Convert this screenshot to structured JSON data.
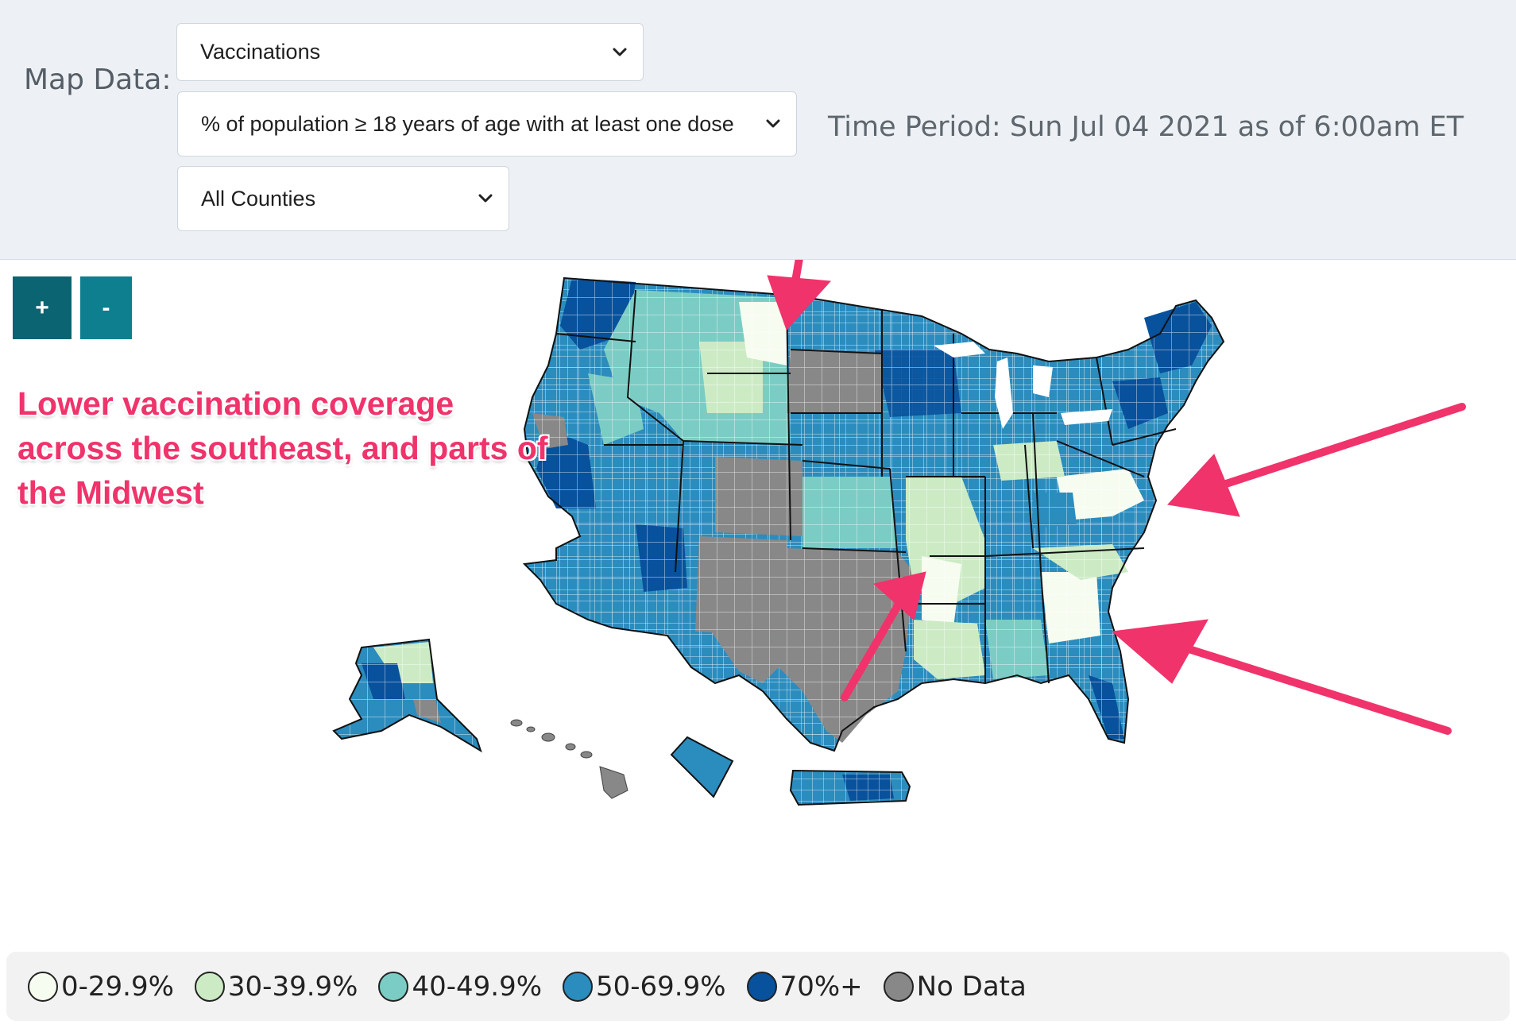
{
  "controls": {
    "map_data_label": "Map Data:",
    "data_select": "Vaccinations",
    "metric_select": "% of population ≥ 18 years of age with at least one dose",
    "geo_select": "All Counties",
    "time_period": "Time Period: Sun Jul 04 2021 as of 6:00am ET"
  },
  "zoom": {
    "in_label": "+",
    "out_label": "-"
  },
  "annotation": "Lower vaccination coverage across the southeast, and parts of the Midwest",
  "icons": [
    "chevron-down-icon"
  ],
  "legend": [
    {
      "label": "0-29.9%",
      "color": "#f7fcf0"
    },
    {
      "label": "30-39.9%",
      "color": "#ccebc5"
    },
    {
      "label": "40-49.9%",
      "color": "#7bccc4"
    },
    {
      "label": "50-69.9%",
      "color": "#2b8cbe"
    },
    {
      "label": "70%+",
      "color": "#08519c"
    },
    {
      "label": "No Data",
      "color": "#888888"
    }
  ],
  "colors": {
    "arrow": "#f0336b",
    "annotation": "#f0336b",
    "no_data": "#888888"
  }
}
